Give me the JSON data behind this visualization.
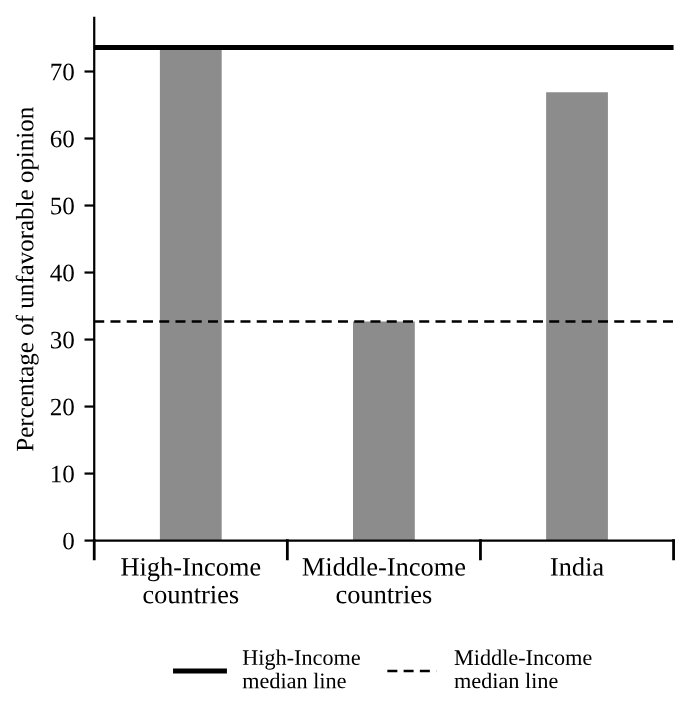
{
  "chart_data": {
    "type": "bar",
    "ylabel": "Percentage of unfavorable opinion",
    "categories": [
      "High-Income\ncountries",
      "Middle-Income\ncountries",
      "India"
    ],
    "values": [
      73.6,
      32.7,
      66.9
    ],
    "color": "#8c8c8c",
    "ylim": [
      0,
      78
    ],
    "yticks": [
      0,
      10,
      20,
      30,
      40,
      50,
      60,
      70
    ],
    "grid": false,
    "legend": "bottom",
    "ref_lines": [
      {
        "axis": "y",
        "value": 73.6,
        "label": "High-Income\nmedian line",
        "color": "#000000",
        "line_style": "solid"
      },
      {
        "axis": "y",
        "value": 32.7,
        "label": "Middle-Income\nmedian line",
        "color": "#000000",
        "line_style": "dashed"
      }
    ]
  }
}
